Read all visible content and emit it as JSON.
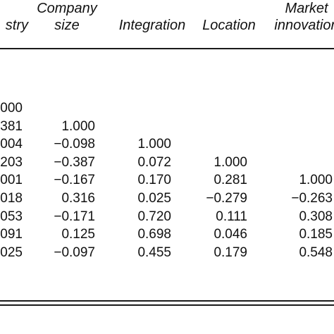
{
  "headers": [
    {
      "lines": [
        "stry"
      ]
    },
    {
      "lines": [
        "Company",
        "size"
      ]
    },
    {
      "lines": [
        "Integration"
      ]
    },
    {
      "lines": [
        "Location"
      ]
    },
    {
      "lines": [
        "Market",
        "innovation"
      ]
    }
  ],
  "rows": [
    [
      "000",
      "",
      "",
      "",
      ""
    ],
    [
      "381",
      "1.000",
      "",
      "",
      ""
    ],
    [
      "004",
      "−0.098",
      "1.000",
      "",
      ""
    ],
    [
      "203",
      "−0.387",
      "0.072",
      "1.000",
      ""
    ],
    [
      "001",
      "−0.167",
      "0.170",
      "0.281",
      "1.000"
    ],
    [
      "018",
      "0.316",
      "0.025",
      "−0.279",
      "−0.263"
    ],
    [
      "053",
      "−0.171",
      "0.720",
      "0.111",
      "0.308"
    ],
    [
      "091",
      "0.125",
      "0.698",
      "0.046",
      "0.185"
    ],
    [
      "025",
      "−0.097",
      "0.455",
      "0.179",
      "0.548"
    ]
  ]
}
